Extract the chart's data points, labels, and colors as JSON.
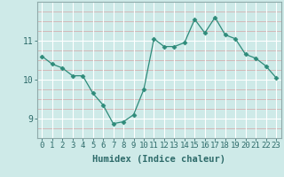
{
  "xlabel": "Humidex (Indice chaleur)",
  "x_values": [
    0,
    1,
    2,
    3,
    4,
    5,
    6,
    7,
    8,
    9,
    10,
    11,
    12,
    13,
    14,
    15,
    16,
    17,
    18,
    19,
    20,
    21,
    22,
    23
  ],
  "y_values": [
    10.6,
    10.4,
    10.3,
    10.1,
    10.1,
    9.65,
    9.35,
    8.87,
    8.92,
    9.1,
    9.75,
    11.05,
    10.85,
    10.85,
    10.95,
    11.55,
    11.2,
    11.6,
    11.15,
    11.05,
    10.65,
    10.55,
    10.35,
    10.05
  ],
  "line_color": "#2e8b7a",
  "marker": "D",
  "marker_size": 2.5,
  "bg_color": "#ceeae8",
  "grid_major_color": "#ffffff",
  "grid_minor_color": "#d4b8b8",
  "axis_color": "#8faaaa",
  "tick_color": "#2e6b6a",
  "ylim": [
    8.5,
    12.0
  ],
  "yticks": [
    9,
    10,
    11
  ],
  "xlim": [
    -0.5,
    23.5
  ],
  "label_fontsize": 6.5,
  "xlabel_fontsize": 7.5
}
